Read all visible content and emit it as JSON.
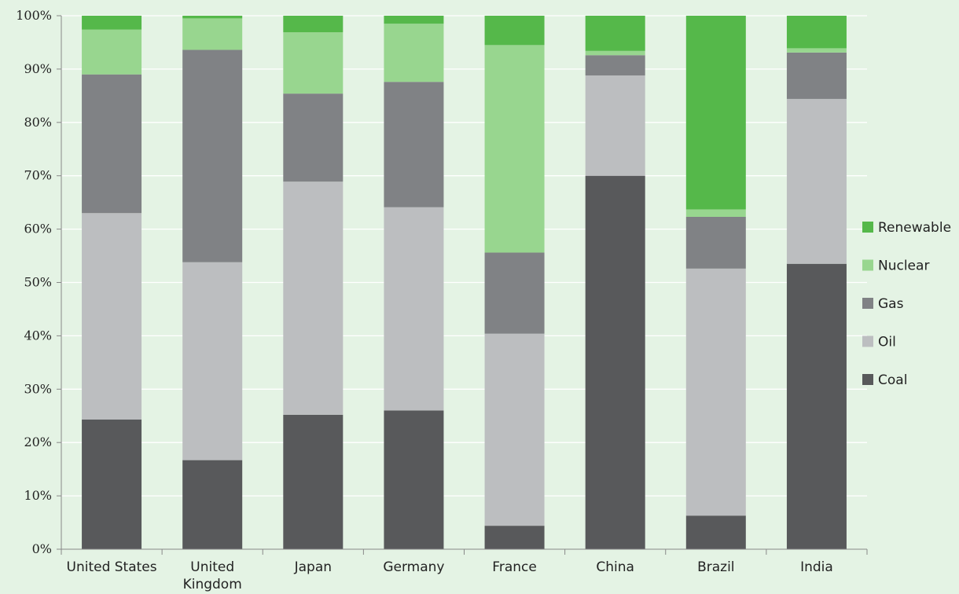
{
  "chart_data": {
    "type": "bar",
    "stacked": true,
    "percent_stacked": true,
    "title": "",
    "xlabel": "",
    "ylabel": "",
    "ylim": [
      0,
      100
    ],
    "y_ticks": [
      "0%",
      "10%",
      "20%",
      "30%",
      "40%",
      "50%",
      "60%",
      "70%",
      "80%",
      "90%",
      "100%"
    ],
    "categories": [
      "United States",
      "United Kingdom",
      "Japan",
      "Germany",
      "France",
      "China",
      "Brazil",
      "India"
    ],
    "series": [
      {
        "name": "Coal",
        "color": "#58595b",
        "values": [
          24.3,
          16.7,
          25.2,
          26.0,
          4.4,
          70.0,
          6.3,
          53.5
        ]
      },
      {
        "name": "Oil",
        "color": "#bcbec0",
        "values": [
          38.7,
          37.1,
          43.7,
          38.1,
          36.0,
          18.8,
          46.3,
          30.9
        ]
      },
      {
        "name": "Gas",
        "color": "#808285",
        "values": [
          26.0,
          39.8,
          16.5,
          23.5,
          15.2,
          3.8,
          9.7,
          8.7
        ]
      },
      {
        "name": "Nuclear",
        "color": "#98d68f",
        "values": [
          8.4,
          5.9,
          11.5,
          10.9,
          38.9,
          0.8,
          1.4,
          0.8
        ]
      },
      {
        "name": "Renewable",
        "color": "#55b84a",
        "values": [
          2.6,
          0.5,
          3.1,
          1.5,
          5.5,
          6.6,
          36.3,
          6.1
        ]
      }
    ],
    "grid": true,
    "legend_position": "right"
  }
}
